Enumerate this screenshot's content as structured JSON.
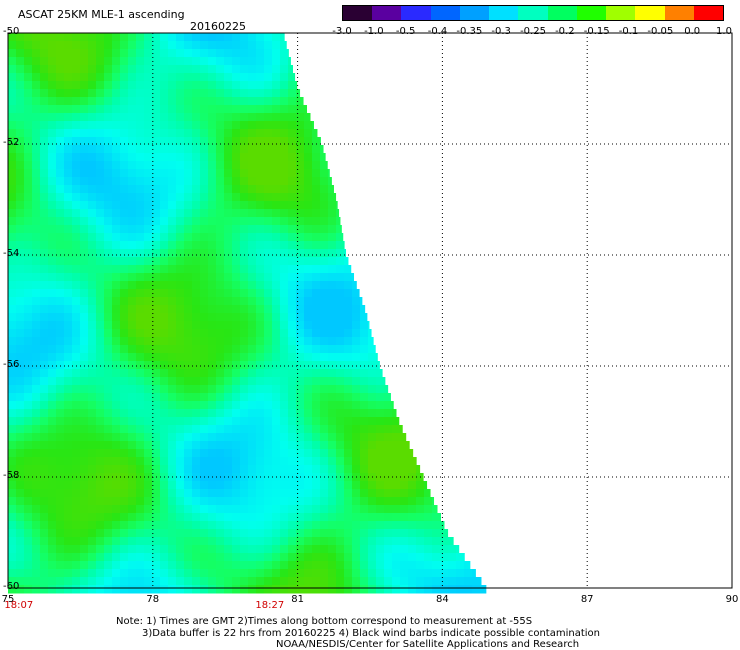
{
  "header": {
    "title": "ASCAT 25KM MLE-1 ascending",
    "date": "20160225"
  },
  "colorbar": {
    "labels": [
      "-3.0",
      "-1.0",
      "-0.5",
      "-0.4",
      "-0.35",
      "-0.3",
      "-0.25",
      "-0.2",
      "-0.15",
      "-0.1",
      "-0.05",
      "0.0",
      "1.0"
    ],
    "colors": [
      "#2a0033",
      "#5a00a0",
      "#2a2aff",
      "#0066ff",
      "#00a0ff",
      "#00e0ff",
      "#00ffc0",
      "#00ff60",
      "#20ff00",
      "#a0ff00",
      "#ffff00",
      "#ff8000",
      "#ff0000"
    ]
  },
  "axes": {
    "lat_labels": [
      "-50",
      "-52",
      "-54",
      "-56",
      "-58",
      "-60"
    ],
    "lon_labels": [
      "75",
      "78",
      "81",
      "84",
      "87",
      "90"
    ],
    "time_labels": [
      "18:07",
      "18:27"
    ]
  },
  "notes": {
    "line1": "Note: 1) Times are GMT 2)Times along bottom correspond to measurement at -55S",
    "line2": "3)Data buffer is 22 hrs from 20160225 4) Black wind barbs indicate possible contamination",
    "line3": "NOAA/NESDIS/Center for Satellite Applications and Research"
  },
  "map": {
    "lat_range": [
      -60,
      -50
    ],
    "lon_range": [
      75,
      90
    ],
    "swath_edge": [
      {
        "lat": -50.0,
        "lon": 80.7
      },
      {
        "lat": -51.0,
        "lon": 81.0
      },
      {
        "lat": -52.0,
        "lon": 81.5
      },
      {
        "lat": -53.0,
        "lon": 81.8
      },
      {
        "lat": -54.0,
        "lon": 82.0
      },
      {
        "lat": -55.0,
        "lon": 82.4
      },
      {
        "lat": -56.0,
        "lon": 82.7
      },
      {
        "lat": -57.0,
        "lon": 83.1
      },
      {
        "lat": -58.0,
        "lon": 83.6
      },
      {
        "lat": -59.0,
        "lon": 84.1
      },
      {
        "lat": -60.0,
        "lon": 84.9
      }
    ]
  }
}
